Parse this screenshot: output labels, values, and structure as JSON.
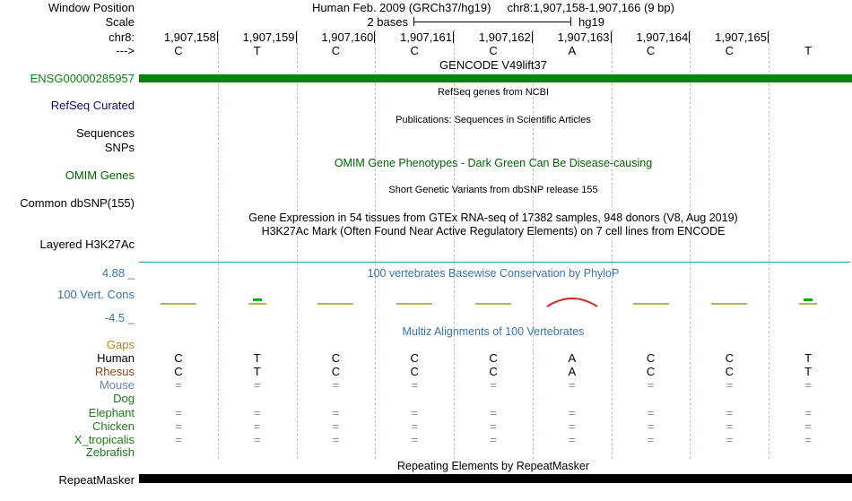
{
  "header": {
    "window_position_label": "Window Position",
    "assembly_title": "Human Feb. 2009 (GRCh37/hg19)",
    "position_title": "chr8:1,907,158-1,907,166 (9 bp)",
    "scale_label": "Scale",
    "scale_value": "2 bases",
    "assembly_name": "hg19",
    "chrom_label": "chr8:",
    "strand_arrow": "--->",
    "ruler_ticks": [
      "1,907,158",
      "1,907,159",
      "1,907,160",
      "1,907,161",
      "1,907,162",
      "1,907,163",
      "1,907,164",
      "1,907,165"
    ],
    "sequence": [
      "C",
      "T",
      "C",
      "C",
      "C",
      "A",
      "C",
      "C",
      "T"
    ]
  },
  "tracks": {
    "gencode": {
      "center_label": "GENCODE V49lift37",
      "left_label": "ENSG00000285957",
      "color": "#0c800c"
    },
    "refseq": {
      "center_label": "RefSeq genes from NCBI",
      "left_label": "RefSeq Curated",
      "color": "#0c0c78"
    },
    "publications": {
      "center_label": "Publications: Sequences in Scientific Articles",
      "left_label_1": "Sequences",
      "left_label_2": "SNPs"
    },
    "omim": {
      "center_label": "OMIM Gene Phenotypes - Dark Green Can Be Disease-causing",
      "left_label": "OMIM Genes",
      "color": "#006400"
    },
    "dbsnp": {
      "center_label": "Short Genetic Variants from dbSNP release 155",
      "left_label": "Common dbSNP(155)"
    },
    "gtex": {
      "center_label": "Gene Expression in 54 tissues from GTEx RNA-seq of 17382 samples, 948 donors (V8, Aug 2019)"
    },
    "h3k27ac": {
      "center_label": "H3K27Ac Mark (Often Found Near Active Regulatory Elements) on 7 cell lines from ENCODE",
      "left_label": "Layered H3K27Ac",
      "baseline_color": "#2a9b9b"
    },
    "conservation": {
      "center_label": "100 vertebrates Basewise Conservation by PhyloP",
      "left_label": "100 Vert. Cons",
      "max_value": "4.88 _",
      "min_value": "-4.5 _",
      "color": "#3873ae",
      "positive_color": "#b2b25e",
      "high_color": "#00b300",
      "negative_color": "#cc2a2a"
    },
    "multiz": {
      "center_label": "Multiz Alignments of 100 Vertebrates",
      "rows": [
        {
          "label": "Gaps",
          "color": "#b8860b",
          "cell_color": "#8a8a8a",
          "cells": [
            "",
            "",
            "",
            "",
            "",
            "",
            "",
            "",
            ""
          ]
        },
        {
          "label": "Human",
          "color": "#000000",
          "cell_color": "#000000",
          "cells": [
            "C",
            "T",
            "C",
            "C",
            "C",
            "A",
            "C",
            "C",
            "T"
          ]
        },
        {
          "label": "Rhesus",
          "color": "#8b4513",
          "cell_color": "#000000",
          "cells": [
            "C",
            "T",
            "C",
            "C",
            "C",
            "A",
            "C",
            "C",
            "T"
          ]
        },
        {
          "label": "Mouse",
          "color": "#6a86a8",
          "cell_color": "#8a8a8a",
          "cells": [
            "=",
            "=",
            "=",
            "=",
            "=",
            "=",
            "=",
            "=",
            "="
          ]
        },
        {
          "label": "Dog",
          "color": "#1d7a1d",
          "cell_color": "#8a8a8a",
          "cells": [
            "",
            "",
            "",
            "",
            "",
            "",
            "",
            "",
            ""
          ]
        },
        {
          "label": "Elephant",
          "color": "#1d7a1d",
          "cell_color": "#8a8a8a",
          "cells": [
            "=",
            "=",
            "=",
            "=",
            "=",
            "=",
            "=",
            "=",
            "="
          ]
        },
        {
          "label": "Chicken",
          "color": "#1d7a1d",
          "cell_color": "#8a8a8a",
          "cells": [
            "=",
            "=",
            "=",
            "=",
            "=",
            "=",
            "=",
            "=",
            "="
          ]
        },
        {
          "label": "X_tropicalis",
          "color": "#1d7a1d",
          "cell_color": "#8a8a8a",
          "cells": [
            "=",
            "=",
            "=",
            "=",
            "=",
            "=",
            "=",
            "=",
            "="
          ]
        },
        {
          "label": "Zebrafish",
          "color": "#1d7a1d",
          "cell_color": "#8a8a8a",
          "cells": [
            "",
            "",
            "",
            "",
            "",
            "",
            "",
            "",
            ""
          ]
        }
      ]
    },
    "repeatmasker": {
      "center_label": "Repeating Elements by RepeatMasker",
      "left_label": "RepeatMasker",
      "color": "#000000"
    }
  }
}
